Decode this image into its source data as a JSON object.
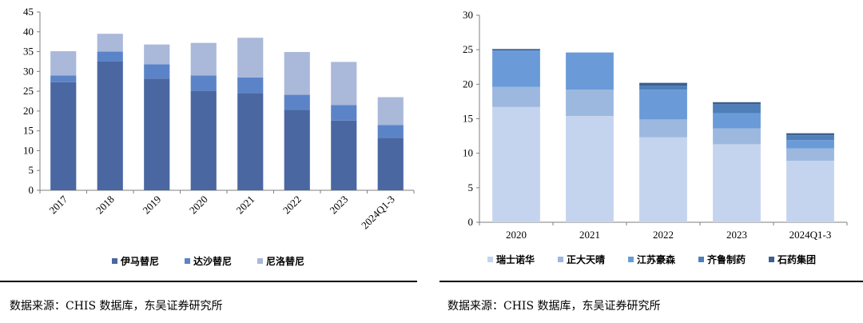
{
  "chart_data": [
    {
      "type": "bar",
      "stacked": true,
      "categories": [
        "2017",
        "2018",
        "2019",
        "2020",
        "2021",
        "2022",
        "2023",
        "2024Q1-3"
      ],
      "series": [
        {
          "name": "伊马替尼",
          "color": "#4a67a1",
          "values": [
            27.3,
            32.5,
            28.2,
            25.1,
            24.5,
            20.3,
            17.6,
            13.2
          ]
        },
        {
          "name": "达沙替尼",
          "color": "#5b84c8",
          "values": [
            1.7,
            2.5,
            3.6,
            3.9,
            4.0,
            3.8,
            3.9,
            3.3
          ]
        },
        {
          "name": "尼洛替尼",
          "color": "#aab8da",
          "values": [
            6.1,
            4.5,
            5.0,
            8.2,
            10.0,
            10.8,
            10.9,
            7.0
          ]
        }
      ],
      "ylim": [
        0,
        45
      ],
      "yticks": [
        "0",
        "5",
        "10",
        "15",
        "20",
        "25",
        "30",
        "35",
        "40",
        "45"
      ],
      "legend_position": "bottom",
      "grid": false
    },
    {
      "type": "bar",
      "stacked": true,
      "categories": [
        "2020",
        "2021",
        "2022",
        "2023",
        "2024Q1-3"
      ],
      "series": [
        {
          "name": "瑞士诺华",
          "color": "#c5d4ee",
          "values": [
            16.7,
            15.4,
            12.3,
            11.3,
            8.9
          ]
        },
        {
          "name": "正大天晴",
          "color": "#9db8df",
          "values": [
            2.9,
            3.8,
            2.6,
            2.3,
            1.8
          ]
        },
        {
          "name": "江苏豪森",
          "color": "#6a9bd8",
          "values": [
            5.3,
            5.4,
            4.3,
            2.2,
            1.2
          ]
        },
        {
          "name": "齐鲁制药",
          "color": "#4f7fb8",
          "values": [
            0.0,
            0.0,
            0.6,
            1.3,
            0.7
          ]
        },
        {
          "name": "石药集团",
          "color": "#3d5f8f",
          "values": [
            0.2,
            0.0,
            0.4,
            0.3,
            0.3
          ]
        }
      ],
      "ylim": [
        0,
        30
      ],
      "yticks": [
        "0",
        "5",
        "10",
        "15",
        "20",
        "25",
        "30"
      ],
      "legend_position": "bottom",
      "grid": false
    }
  ],
  "sources": {
    "left": "数据来源：CHIS 数据库，东吴证券研究所",
    "right": "数据来源：CHIS 数据库，东吴证券研究所"
  }
}
